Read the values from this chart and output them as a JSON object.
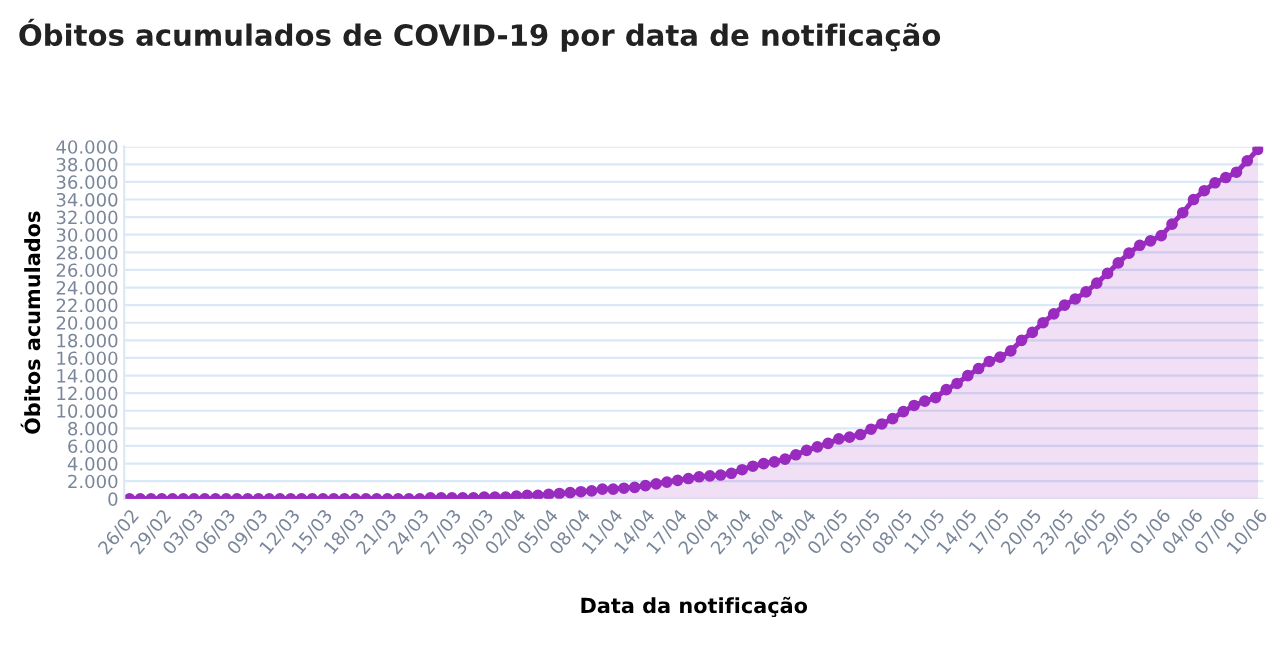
{
  "chart_data": {
    "type": "area",
    "title": "Óbitos acumulados de COVID-19 por data de notificação",
    "xlabel": "Data da notificação",
    "ylabel": "Óbitos acumulados",
    "categories": [
      "26/02",
      null,
      null,
      "29/02",
      null,
      null,
      "03/03",
      null,
      null,
      "06/03",
      null,
      null,
      "09/03",
      null,
      null,
      "12/03",
      null,
      null,
      "15/03",
      null,
      null,
      "18/03",
      null,
      null,
      "21/03",
      null,
      null,
      "24/03",
      null,
      null,
      "27/03",
      null,
      null,
      "30/03",
      null,
      null,
      "02/04",
      null,
      null,
      "05/04",
      null,
      null,
      "08/04",
      null,
      null,
      "11/04",
      null,
      null,
      "14/04",
      null,
      null,
      "17/04",
      null,
      null,
      "20/04",
      null,
      null,
      "23/04",
      null,
      null,
      "26/04",
      null,
      null,
      "29/04",
      null,
      null,
      "02/05",
      null,
      null,
      "05/05",
      null,
      null,
      "08/05",
      null,
      null,
      "11/05",
      null,
      null,
      "14/05",
      null,
      null,
      "17/05",
      null,
      null,
      "20/05",
      null,
      null,
      "23/05",
      null,
      null,
      "26/05",
      null,
      null,
      "29/05",
      null,
      null,
      "01/06",
      null,
      null,
      "04/06",
      null,
      null,
      "07/06",
      null,
      null,
      "10/06"
    ],
    "series": [
      {
        "color": "#9a2bbf",
        "values": [
          0,
          0,
          0,
          0,
          0,
          0,
          0,
          0,
          0,
          0,
          0,
          0,
          0,
          0,
          0,
          0,
          0,
          0,
          0,
          0,
          0,
          0,
          0,
          0,
          0,
          0,
          0,
          0,
          100,
          100,
          100,
          100,
          100,
          200,
          200,
          200,
          300,
          400,
          400,
          500,
          600,
          700,
          800,
          900,
          1100,
          1100,
          1200,
          1300,
          1500,
          1700,
          1900,
          2100,
          2300,
          2500,
          2600,
          2700,
          2900,
          3300,
          3700,
          4000,
          4200,
          4500,
          5000,
          5500,
          5900,
          6300,
          6800,
          7000,
          7300,
          7900,
          8500,
          9100,
          9900,
          10600,
          11100,
          11500,
          12400,
          13100,
          14000,
          14800,
          15600,
          16100,
          16800,
          18000,
          18900,
          20000,
          21000,
          22000,
          22700,
          23500,
          24500,
          25600,
          26800,
          27900,
          28800,
          29300,
          29900,
          31200,
          32500,
          34000,
          35000,
          35900,
          36500,
          37100,
          38400,
          39700
        ]
      }
    ],
    "ylim": [
      0,
      40000
    ],
    "yticks": [
      {
        "value": 0,
        "label": "0"
      },
      {
        "value": 2000,
        "label": "2.000"
      },
      {
        "value": 4000,
        "label": "4.000"
      },
      {
        "value": 6000,
        "label": "6.000"
      },
      {
        "value": 8000,
        "label": "8.000"
      },
      {
        "value": 10000,
        "label": "10.000"
      },
      {
        "value": 12000,
        "label": "12.000"
      },
      {
        "value": 14000,
        "label": "14.000"
      },
      {
        "value": 16000,
        "label": "16.000"
      },
      {
        "value": 18000,
        "label": "18.000"
      },
      {
        "value": 20000,
        "label": "20.000"
      },
      {
        "value": 22000,
        "label": "22.000"
      },
      {
        "value": 24000,
        "label": "24.000"
      },
      {
        "value": 26000,
        "label": "26.000"
      },
      {
        "value": 28000,
        "label": "28.000"
      },
      {
        "value": 30000,
        "label": "30.000"
      },
      {
        "value": 32000,
        "label": "32.000"
      },
      {
        "value": 34000,
        "label": "34.000"
      },
      {
        "value": 36000,
        "label": "36.000"
      },
      {
        "value": 38000,
        "label": "38.000"
      },
      {
        "value": 40000,
        "label": "40.000"
      }
    ],
    "grid": "y",
    "marker": "circle",
    "line_style": "solid"
  }
}
